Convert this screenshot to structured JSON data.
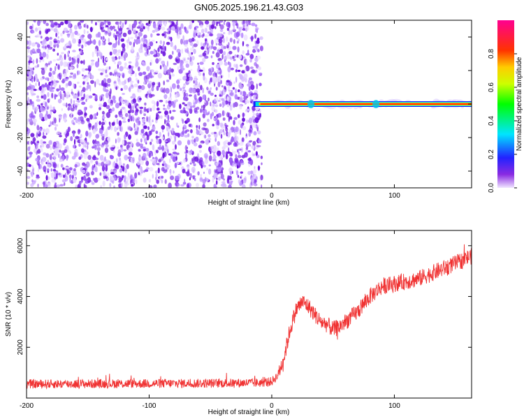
{
  "title": "GN05.2025.196.21.43.G03",
  "chart_data": [
    {
      "type": "heatmap",
      "xlabel": "Height of straight line (km)",
      "ylabel": "Frequency (Hz)",
      "xlim": [
        -200,
        163
      ],
      "ylim": [
        -50,
        50
      ],
      "xticks": [
        -200,
        -100,
        0,
        100
      ],
      "yticks": [
        -40,
        -20,
        0,
        20,
        40
      ],
      "colorbar": {
        "label": "Normalized spectral amplitude",
        "range": [
          0,
          1
        ],
        "ticks": [
          0.0,
          0.2,
          0.4,
          0.6,
          0.8
        ]
      },
      "noise_region_x": [
        -200,
        -15
      ],
      "signal_band": {
        "x": [
          -15,
          163
        ],
        "frequency": 0,
        "amplitude": 1.0
      }
    },
    {
      "type": "line",
      "xlabel": "Height of straight line (km)",
      "ylabel": "SNR (10 * v/v)",
      "xlim": [
        -200,
        163
      ],
      "ylim": [
        0,
        6600
      ],
      "xticks": [
        -200,
        -100,
        0,
        100
      ],
      "yticks": [
        2000,
        4000,
        6000
      ],
      "color": "#f03232",
      "series": [
        {
          "x": [
            -200,
            -150,
            -100,
            -50,
            -10,
            0,
            5,
            10,
            15,
            20,
            25,
            30,
            35,
            40,
            45,
            50,
            55,
            60,
            70,
            80,
            90,
            100,
            110,
            120,
            130,
            140,
            150,
            163
          ],
          "values": [
            550,
            560,
            570,
            580,
            600,
            650,
            900,
            1600,
            2700,
            3500,
            3800,
            3600,
            3300,
            3000,
            2900,
            2700,
            2800,
            3000,
            3400,
            4000,
            4400,
            4500,
            4600,
            4700,
            4900,
            5100,
            5300,
            5600
          ]
        }
      ]
    }
  ]
}
